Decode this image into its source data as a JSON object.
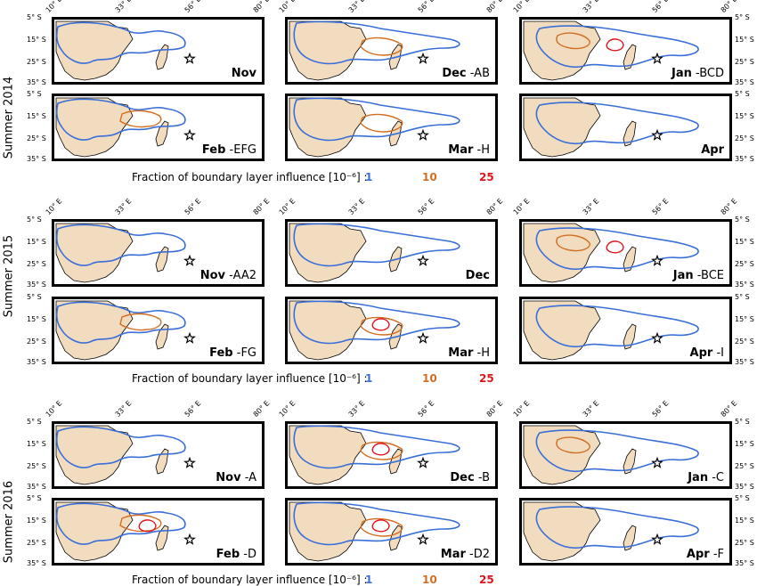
{
  "figure": {
    "seasons": [
      "Summer 2014",
      "Summer 2015",
      "Summer 2016"
    ],
    "lon_ticks": [
      "10° E",
      "33° E",
      "56° E",
      "80° E"
    ],
    "lat_ticks": [
      "5° S",
      "15° S",
      "25° S",
      "35° S"
    ],
    "legend": {
      "text": "Fraction of boundary layer influence [10⁻⁶] :",
      "levels": [
        {
          "value": "1",
          "color": "#3a6fd8"
        },
        {
          "value": "10",
          "color": "#d26e22"
        },
        {
          "value": "25",
          "color": "#e0141c"
        }
      ]
    },
    "colors": {
      "land": "#f2dcc0",
      "contour_1": "#3a6fd8",
      "contour_10": "#d26e22",
      "contour_25": "#e0141c",
      "frame": "#000000"
    },
    "station_marker": "star-icon",
    "panels": [
      {
        "month": "Nov",
        "suffix": "",
        "levels": [
          "1"
        ]
      },
      {
        "month": "Dec",
        "suffix": " -AB",
        "levels": [
          "1",
          "10"
        ]
      },
      {
        "month": "Jan",
        "suffix": " -BCD",
        "levels": [
          "1",
          "10",
          "25"
        ]
      },
      {
        "month": "Feb",
        "suffix": " -EFG",
        "levels": [
          "1",
          "10"
        ]
      },
      {
        "month": "Mar",
        "suffix": " -H",
        "levels": [
          "1",
          "10"
        ]
      },
      {
        "month": "Apr",
        "suffix": "",
        "levels": [
          "1"
        ]
      },
      {
        "month": "Nov",
        "suffix": " -AA2",
        "levels": [
          "1"
        ]
      },
      {
        "month": "Dec",
        "suffix": "",
        "levels": [
          "1"
        ]
      },
      {
        "month": "Jan",
        "suffix": " -BCE",
        "levels": [
          "1",
          "10",
          "25"
        ]
      },
      {
        "month": "Feb",
        "suffix": " -FG",
        "levels": [
          "1",
          "10"
        ]
      },
      {
        "month": "Mar",
        "suffix": " -H",
        "levels": [
          "1",
          "10",
          "25"
        ]
      },
      {
        "month": "Apr",
        "suffix": " -I",
        "levels": [
          "1"
        ]
      },
      {
        "month": "Nov",
        "suffix": " -A",
        "levels": [
          "1"
        ]
      },
      {
        "month": "Dec",
        "suffix": " -B",
        "levels": [
          "1",
          "10",
          "25"
        ]
      },
      {
        "month": "Jan",
        "suffix": " -C",
        "levels": [
          "1",
          "10"
        ]
      },
      {
        "month": "Feb",
        "suffix": " -D",
        "levels": [
          "1",
          "10",
          "25"
        ]
      },
      {
        "month": "Mar",
        "suffix": " -D2",
        "levels": [
          "1",
          "10",
          "25"
        ]
      },
      {
        "month": "Apr",
        "suffix": " -F",
        "levels": [
          "1"
        ]
      }
    ]
  }
}
